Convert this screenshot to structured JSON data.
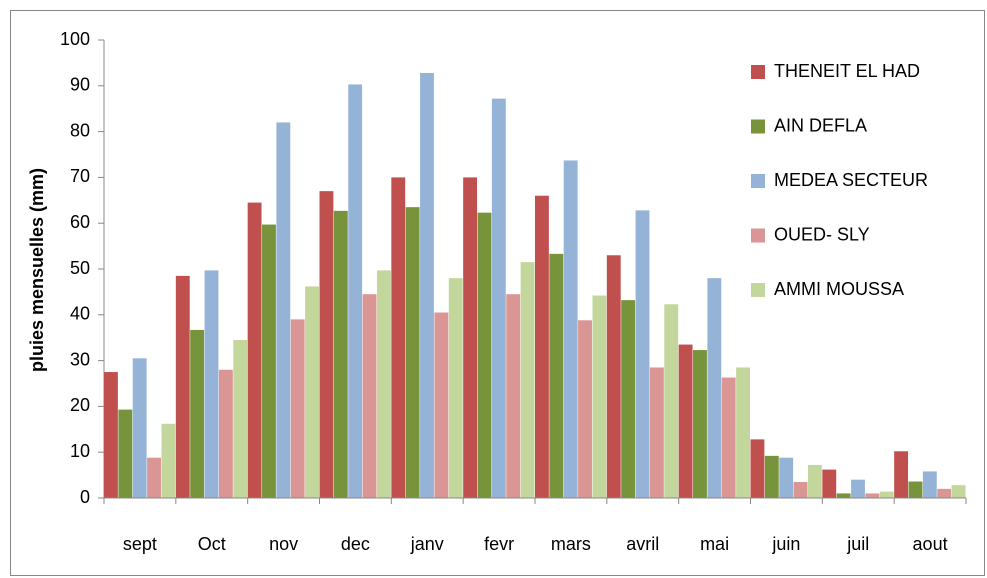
{
  "chart_data": {
    "type": "bar",
    "y_label": "pluies mensuelles (mm)",
    "categories": [
      "sept",
      "Oct",
      "nov",
      "dec",
      "janv",
      "fevr",
      "mars",
      "avril",
      "mai",
      "juin",
      "juil",
      "aout"
    ],
    "series": [
      {
        "name": "THENEIT  EL HAD",
        "color": "#c0504d",
        "values": [
          27.5,
          48.5,
          64.5,
          67,
          70,
          70,
          66,
          53,
          33.5,
          12.8,
          6.2,
          10.2
        ]
      },
      {
        "name": "AIN DEFLA",
        "color": "#77933c",
        "values": [
          19.3,
          36.7,
          59.7,
          62.7,
          63.5,
          62.3,
          53.3,
          43.2,
          32.3,
          9.2,
          1,
          3.6
        ]
      },
      {
        "name": "MEDEA SECTEUR",
        "color": "#95b3d7",
        "values": [
          30.5,
          49.7,
          82,
          90.3,
          92.8,
          87.2,
          73.7,
          62.8,
          48,
          8.8,
          4,
          5.8
        ]
      },
      {
        "name": "OUED- SLY",
        "color": "#d99694",
        "values": [
          8.8,
          28,
          39,
          44.5,
          40.5,
          44.5,
          38.8,
          28.5,
          26.3,
          3.5,
          1,
          2
        ]
      },
      {
        "name": "AMMI MOUSSA",
        "color": "#c3d69b",
        "values": [
          16.2,
          34.5,
          46.2,
          49.7,
          48,
          51.5,
          44.2,
          42.3,
          28.5,
          7.2,
          1.4,
          2.8
        ]
      }
    ],
    "ylim": [
      0,
      100
    ],
    "yticks": [
      0,
      10,
      20,
      30,
      40,
      50,
      60,
      70,
      80,
      90,
      100
    ],
    "legend": "right"
  }
}
